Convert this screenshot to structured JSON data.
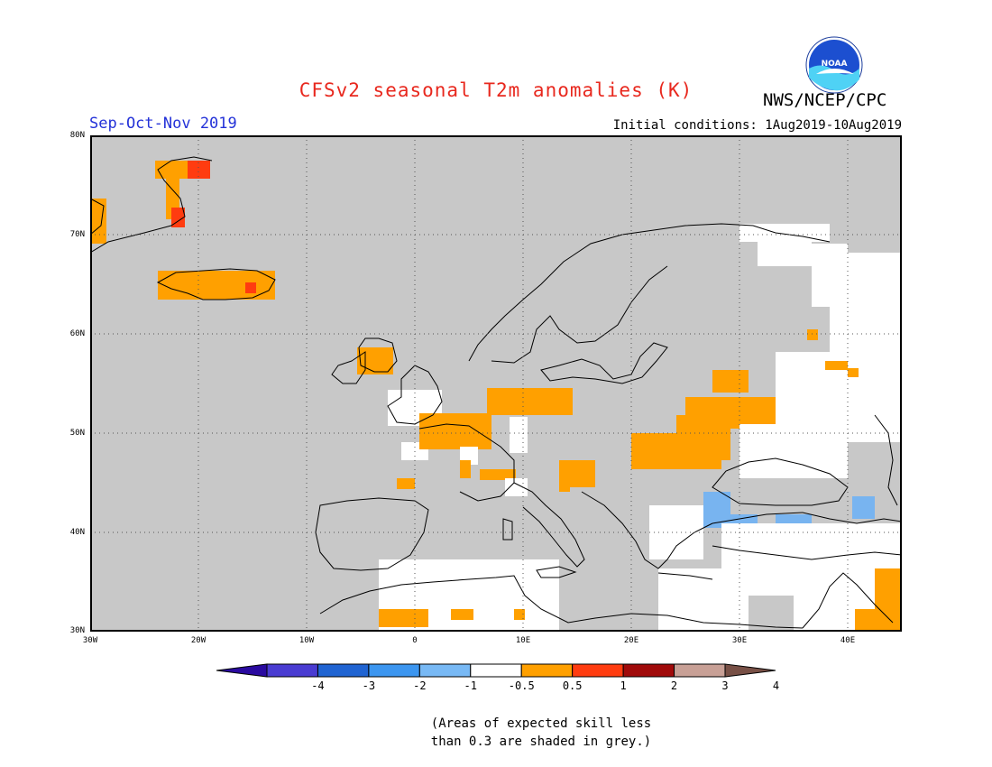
{
  "title": "CFSv2 seasonal T2m anomalies (K)",
  "agency": "NWS/NCEP/CPC",
  "logo": {
    "icon": "noaa-logo",
    "text": "NOAA"
  },
  "season": "Sep-Oct-Nov 2019",
  "initial_conditions": "Initial conditions: 1Aug2019-10Aug2019",
  "map": {
    "lon_range": [
      -30,
      45
    ],
    "lat_range": [
      30,
      80
    ],
    "lat_labels": [
      "80N",
      "70N",
      "60N",
      "50N",
      "40N",
      "30N"
    ],
    "lon_labels": [
      "30W",
      "20W",
      "10W",
      "0",
      "10E",
      "20E",
      "30E",
      "40E"
    ],
    "colors": {
      "ocean_grey": "#c8c8c8",
      "land_grey": "#c8c8c8",
      "neutral": "#ffffff",
      "warm_0_5_1": "#ffa000",
      "warm_1_2": "#ff3c10",
      "cool_minus1_minus0_5": "#78b4f0"
    }
  },
  "colorbar": {
    "labels": [
      "-4",
      "-3",
      "-2",
      "-1",
      "-0.5",
      "0.5",
      "1",
      "2",
      "3",
      "4"
    ],
    "colors": [
      "#2a0aa0",
      "#4a3cd2",
      "#2064d2",
      "#3c96f0",
      "#78b9f5",
      "#ffffff",
      "#ffa000",
      "#ff3c10",
      "#a00a0a",
      "#c8a096",
      "#785046"
    ]
  },
  "note": {
    "line1": "(Areas of expected skill less",
    "line2": "than 0.3 are shaded in grey.)"
  }
}
